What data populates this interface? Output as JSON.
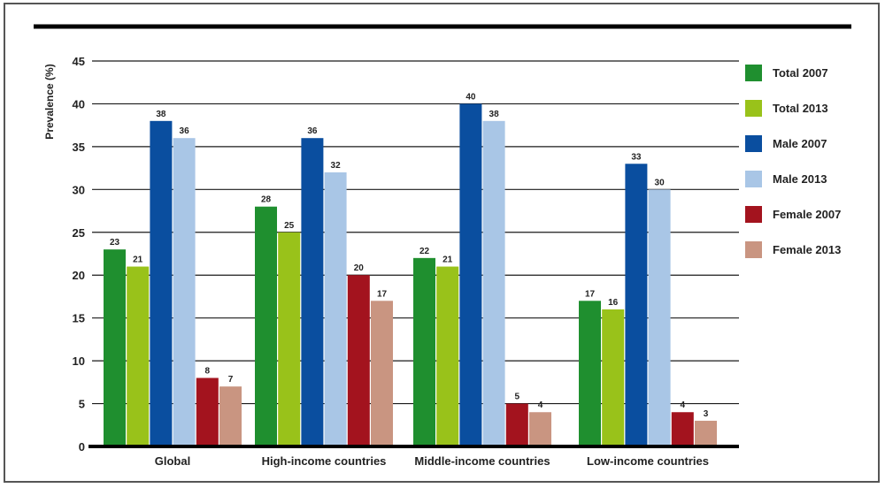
{
  "chart_data": {
    "type": "bar",
    "title": "",
    "xlabel": "",
    "ylabel": "Prevalence (%)",
    "ylim": [
      0,
      45
    ],
    "yticks": [
      0,
      5,
      10,
      15,
      20,
      25,
      30,
      35,
      40,
      45
    ],
    "grid": true,
    "legend_position": "right",
    "categories": [
      "Global",
      "High-income countries",
      "Middle-income countries",
      "Low-income countries"
    ],
    "series": [
      {
        "name": "Total 2007",
        "color": "#1f8f2f",
        "values": [
          23,
          28,
          22,
          17
        ]
      },
      {
        "name": "Total 2013",
        "color": "#99c21a",
        "values": [
          21,
          25,
          21,
          16
        ]
      },
      {
        "name": "Male 2007",
        "color": "#0a4e9f",
        "values": [
          38,
          36,
          40,
          33
        ]
      },
      {
        "name": "Male 2013",
        "color": "#a9c6e6",
        "values": [
          36,
          32,
          38,
          30
        ]
      },
      {
        "name": "Female 2007",
        "color": "#a3131e",
        "values": [
          8,
          20,
          5,
          4
        ]
      },
      {
        "name": "Female 2013",
        "color": "#c99581",
        "values": [
          7,
          17,
          4,
          3
        ]
      }
    ],
    "data_labels": true
  }
}
